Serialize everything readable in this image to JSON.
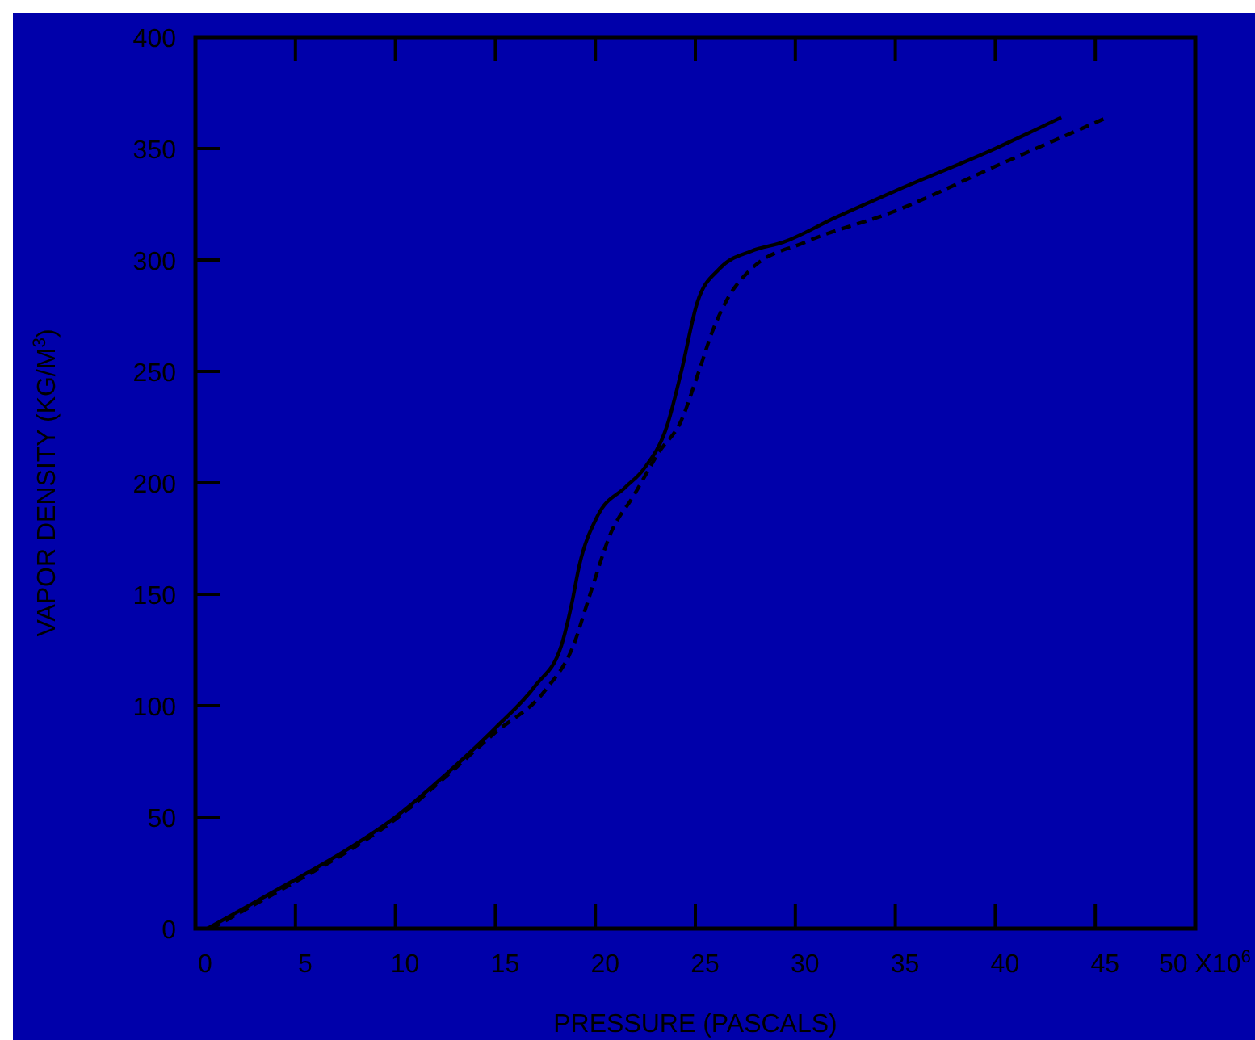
{
  "chart_data": {
    "type": "line",
    "xlabel": "PRESSURE (PASCALS)",
    "ylabel": "VAPOR DENSITY (KG/M$^{3}$)",
    "xlim": [
      0,
      50
    ],
    "xticks": [
      0,
      5,
      10,
      15,
      20,
      25,
      30,
      35,
      40,
      45,
      {
        "value": 50,
        "label": "50 X10$^{6}$"
      }
    ],
    "ylim": [
      0,
      400
    ],
    "yticks": [
      0,
      50,
      100,
      150,
      200,
      250,
      300,
      350,
      400
    ],
    "tick_labels": "xy",
    "grid": false,
    "marker": "none",
    "series": [
      {
        "color": "#000000",
        "line_style": "solid",
        "x": [
          0.6,
          3,
          5,
          7.5,
          10,
          12.5,
          15,
          17,
          18.3,
          18.8,
          19.2,
          20.1,
          21.5,
          22.4,
          23.6,
          24.3,
          25.1,
          26.2,
          27.8,
          29.4,
          32,
          35,
          40,
          43.3
        ],
        "values": [
          0,
          12,
          22,
          35,
          50,
          69,
          90,
          109,
          127,
          145,
          163,
          185,
          198,
          206,
          226,
          250,
          281,
          296,
          304,
          308,
          319,
          331,
          350,
          364
        ]
      },
      {
        "color": "#000000",
        "line_style": "dashed",
        "x": [
          0.8,
          3,
          5,
          7.5,
          10,
          12.5,
          15,
          17.5,
          18.9,
          19.7,
          20.8,
          21.9,
          23.2,
          24.3,
          25.1,
          25.9,
          26.7,
          27.8,
          30.5,
          35,
          40,
          45.6
        ],
        "values": [
          0,
          11,
          21,
          34,
          49,
          68,
          88,
          107,
          127,
          149,
          178,
          194,
          214,
          228,
          248,
          269,
          284,
          296,
          308,
          322,
          342,
          364
        ]
      }
    ]
  }
}
